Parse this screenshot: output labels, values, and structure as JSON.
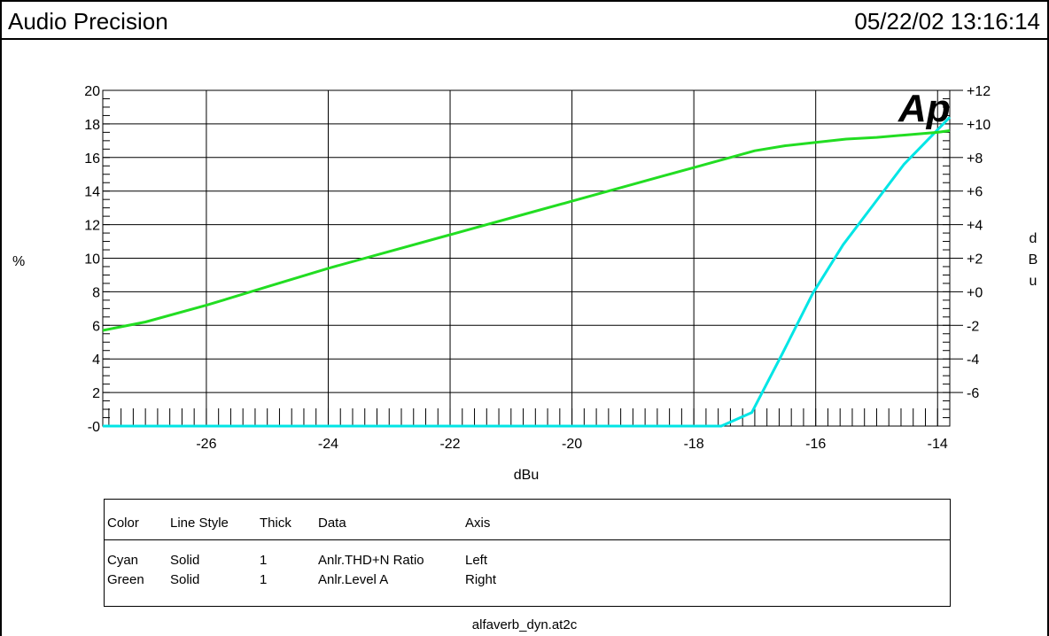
{
  "header": {
    "title": "Audio Precision",
    "timestamp": "05/22/02 13:16:14"
  },
  "logo": {
    "text": "Ap",
    "color": "#1a1acc"
  },
  "chart_data": {
    "type": "line",
    "xlabel": "dBu",
    "ylabel_left": "%",
    "ylabel_right": "dBu",
    "xlim": [
      -27.7,
      -13.8
    ],
    "ylim_left": [
      0,
      20
    ],
    "ylim_right": [
      -8,
      12
    ],
    "x_ticks": [
      -26,
      -24,
      -22,
      -20,
      -18,
      -16,
      -14
    ],
    "x_tick_labels": [
      "-26",
      "-24",
      "-22",
      "-20",
      "-18",
      "-16",
      "-14"
    ],
    "y_left_ticks": [
      0,
      2,
      4,
      6,
      8,
      10,
      12,
      14,
      16,
      18,
      20
    ],
    "y_left_tick_labels": [
      "-0",
      "2",
      "4",
      "6",
      "8",
      "10",
      "12",
      "14",
      "16",
      "18",
      "20"
    ],
    "y_right_ticks": [
      -6,
      -4,
      -2,
      0,
      2,
      4,
      6,
      8,
      10,
      12
    ],
    "y_right_tick_labels": [
      "-6",
      "-4",
      "-2",
      "+0",
      "+2",
      "+4",
      "+6",
      "+8",
      "+10",
      "+12"
    ],
    "grid": true,
    "series": [
      {
        "color": "#00e5e5",
        "axis": "left",
        "x": [
          -27.7,
          -26,
          -24,
          -22,
          -20,
          -18,
          -17.55,
          -17.05,
          -16.55,
          -16.05,
          -15.55,
          -15.05,
          -14.55,
          -13.8
        ],
        "y": [
          0,
          0,
          0,
          0,
          0,
          0,
          0,
          0.8,
          4.3,
          7.9,
          10.8,
          13.2,
          15.6,
          18.4
        ]
      },
      {
        "color": "#22dd22",
        "axis": "right",
        "x": [
          -27.7,
          -27,
          -26,
          -25,
          -24,
          -23,
          -22,
          -21,
          -20,
          -19,
          -18.5,
          -18,
          -17.5,
          -17,
          -16.5,
          -16,
          -15.5,
          -15,
          -14.5,
          -14,
          -13.8
        ],
        "y": [
          -2.3,
          -1.8,
          -0.8,
          0.3,
          1.4,
          2.4,
          3.4,
          4.4,
          5.4,
          6.4,
          6.9,
          7.4,
          7.9,
          8.4,
          8.7,
          8.9,
          9.1,
          9.2,
          9.35,
          9.5,
          9.6
        ]
      }
    ]
  },
  "legend": {
    "headers": [
      "Color",
      "Line Style",
      "Thick",
      "Data",
      "Axis"
    ],
    "rows": [
      [
        "Cyan",
        "Solid",
        "1",
        "Anlr.THD+N Ratio",
        "Left"
      ],
      [
        "Green",
        "Solid",
        "1",
        "Anlr.Level A",
        "Right"
      ]
    ]
  },
  "footer": {
    "file": "alfaverb_dyn.at2c"
  }
}
